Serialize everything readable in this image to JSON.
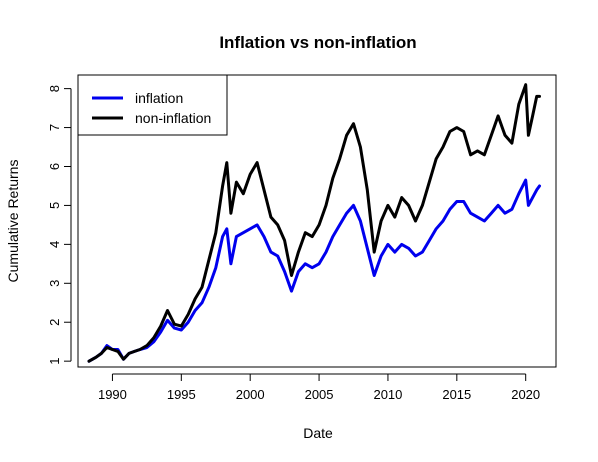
{
  "chart_data": {
    "type": "line",
    "title": "Inflation vs non-inflation",
    "xlabel": "Date",
    "ylabel": "Cumulative Returns",
    "xlim": [
      1987.5,
      2022.2
    ],
    "ylim": [
      0.85,
      8.35
    ],
    "x_ticks": [
      1990,
      1995,
      2000,
      2005,
      2010,
      2015,
      2020
    ],
    "y_ticks": [
      1,
      2,
      3,
      4,
      5,
      6,
      7,
      8
    ],
    "x_tick_labels": [
      "1990",
      "1995",
      "2000",
      "2005",
      "2010",
      "2015",
      "2020"
    ],
    "y_tick_labels": [
      "1",
      "2",
      "3",
      "4",
      "5",
      "6",
      "7",
      "8"
    ],
    "grid": false,
    "legend_position": "top-left",
    "series": [
      {
        "name": "inflation",
        "color": "#0000ee",
        "points": [
          [
            1988.3,
            1.0
          ],
          [
            1988.8,
            1.1
          ],
          [
            1989.2,
            1.2
          ],
          [
            1989.6,
            1.4
          ],
          [
            1990.0,
            1.3
          ],
          [
            1990.4,
            1.3
          ],
          [
            1990.8,
            1.05
          ],
          [
            1991.2,
            1.2
          ],
          [
            1991.6,
            1.25
          ],
          [
            1992.0,
            1.3
          ],
          [
            1992.5,
            1.35
          ],
          [
            1993.0,
            1.5
          ],
          [
            1993.5,
            1.75
          ],
          [
            1994.0,
            2.05
          ],
          [
            1994.5,
            1.85
          ],
          [
            1995.0,
            1.8
          ],
          [
            1995.5,
            2.0
          ],
          [
            1996.0,
            2.3
          ],
          [
            1996.5,
            2.5
          ],
          [
            1997.0,
            2.9
          ],
          [
            1997.5,
            3.4
          ],
          [
            1998.0,
            4.2
          ],
          [
            1998.3,
            4.4
          ],
          [
            1998.6,
            3.5
          ],
          [
            1999.0,
            4.2
          ],
          [
            1999.5,
            4.3
          ],
          [
            2000.0,
            4.4
          ],
          [
            2000.5,
            4.5
          ],
          [
            2001.0,
            4.2
          ],
          [
            2001.5,
            3.8
          ],
          [
            2002.0,
            3.7
          ],
          [
            2002.5,
            3.3
          ],
          [
            2003.0,
            2.8
          ],
          [
            2003.5,
            3.3
          ],
          [
            2004.0,
            3.5
          ],
          [
            2004.5,
            3.4
          ],
          [
            2005.0,
            3.5
          ],
          [
            2005.5,
            3.8
          ],
          [
            2006.0,
            4.2
          ],
          [
            2006.5,
            4.5
          ],
          [
            2007.0,
            4.8
          ],
          [
            2007.5,
            5.0
          ],
          [
            2008.0,
            4.6
          ],
          [
            2008.5,
            3.9
          ],
          [
            2009.0,
            3.2
          ],
          [
            2009.5,
            3.7
          ],
          [
            2010.0,
            4.0
          ],
          [
            2010.5,
            3.8
          ],
          [
            2011.0,
            4.0
          ],
          [
            2011.5,
            3.9
          ],
          [
            2012.0,
            3.7
          ],
          [
            2012.5,
            3.8
          ],
          [
            2013.0,
            4.1
          ],
          [
            2013.5,
            4.4
          ],
          [
            2014.0,
            4.6
          ],
          [
            2014.5,
            4.9
          ],
          [
            2015.0,
            5.1
          ],
          [
            2015.5,
            5.1
          ],
          [
            2016.0,
            4.8
          ],
          [
            2016.5,
            4.7
          ],
          [
            2017.0,
            4.6
          ],
          [
            2017.5,
            4.8
          ],
          [
            2018.0,
            5.0
          ],
          [
            2018.5,
            4.8
          ],
          [
            2019.0,
            4.9
          ],
          [
            2019.5,
            5.3
          ],
          [
            2020.0,
            5.65
          ],
          [
            2020.2,
            5.0
          ],
          [
            2020.5,
            5.2
          ],
          [
            2020.8,
            5.4
          ],
          [
            2021.0,
            5.5
          ]
        ]
      },
      {
        "name": "non-inflation",
        "color": "#000000",
        "points": [
          [
            1988.3,
            1.0
          ],
          [
            1988.8,
            1.1
          ],
          [
            1989.2,
            1.2
          ],
          [
            1989.6,
            1.35
          ],
          [
            1990.0,
            1.3
          ],
          [
            1990.4,
            1.25
          ],
          [
            1990.8,
            1.05
          ],
          [
            1991.2,
            1.2
          ],
          [
            1991.6,
            1.25
          ],
          [
            1992.0,
            1.3
          ],
          [
            1992.5,
            1.4
          ],
          [
            1993.0,
            1.6
          ],
          [
            1993.5,
            1.9
          ],
          [
            1994.0,
            2.3
          ],
          [
            1994.5,
            1.95
          ],
          [
            1995.0,
            1.9
          ],
          [
            1995.5,
            2.2
          ],
          [
            1996.0,
            2.6
          ],
          [
            1996.5,
            2.9
          ],
          [
            1997.0,
            3.6
          ],
          [
            1997.5,
            4.3
          ],
          [
            1998.0,
            5.5
          ],
          [
            1998.3,
            6.1
          ],
          [
            1998.6,
            4.8
          ],
          [
            1999.0,
            5.6
          ],
          [
            1999.5,
            5.3
          ],
          [
            2000.0,
            5.8
          ],
          [
            2000.5,
            6.1
          ],
          [
            2001.0,
            5.4
          ],
          [
            2001.5,
            4.7
          ],
          [
            2002.0,
            4.5
          ],
          [
            2002.5,
            4.1
          ],
          [
            2003.0,
            3.2
          ],
          [
            2003.5,
            3.8
          ],
          [
            2004.0,
            4.3
          ],
          [
            2004.5,
            4.2
          ],
          [
            2005.0,
            4.5
          ],
          [
            2005.5,
            5.0
          ],
          [
            2006.0,
            5.7
          ],
          [
            2006.5,
            6.2
          ],
          [
            2007.0,
            6.8
          ],
          [
            2007.5,
            7.1
          ],
          [
            2008.0,
            6.5
          ],
          [
            2008.5,
            5.4
          ],
          [
            2009.0,
            3.8
          ],
          [
            2009.5,
            4.6
          ],
          [
            2010.0,
            5.0
          ],
          [
            2010.5,
            4.7
          ],
          [
            2011.0,
            5.2
          ],
          [
            2011.5,
            5.0
          ],
          [
            2012.0,
            4.6
          ],
          [
            2012.5,
            5.0
          ],
          [
            2013.0,
            5.6
          ],
          [
            2013.5,
            6.2
          ],
          [
            2014.0,
            6.5
          ],
          [
            2014.5,
            6.9
          ],
          [
            2015.0,
            7.0
          ],
          [
            2015.5,
            6.9
          ],
          [
            2016.0,
            6.3
          ],
          [
            2016.5,
            6.4
          ],
          [
            2017.0,
            6.3
          ],
          [
            2017.5,
            6.8
          ],
          [
            2018.0,
            7.3
          ],
          [
            2018.5,
            6.8
          ],
          [
            2019.0,
            6.6
          ],
          [
            2019.5,
            7.6
          ],
          [
            2020.0,
            8.1
          ],
          [
            2020.2,
            6.8
          ],
          [
            2020.5,
            7.3
          ],
          [
            2020.8,
            7.8
          ],
          [
            2021.0,
            7.8
          ]
        ]
      }
    ]
  }
}
